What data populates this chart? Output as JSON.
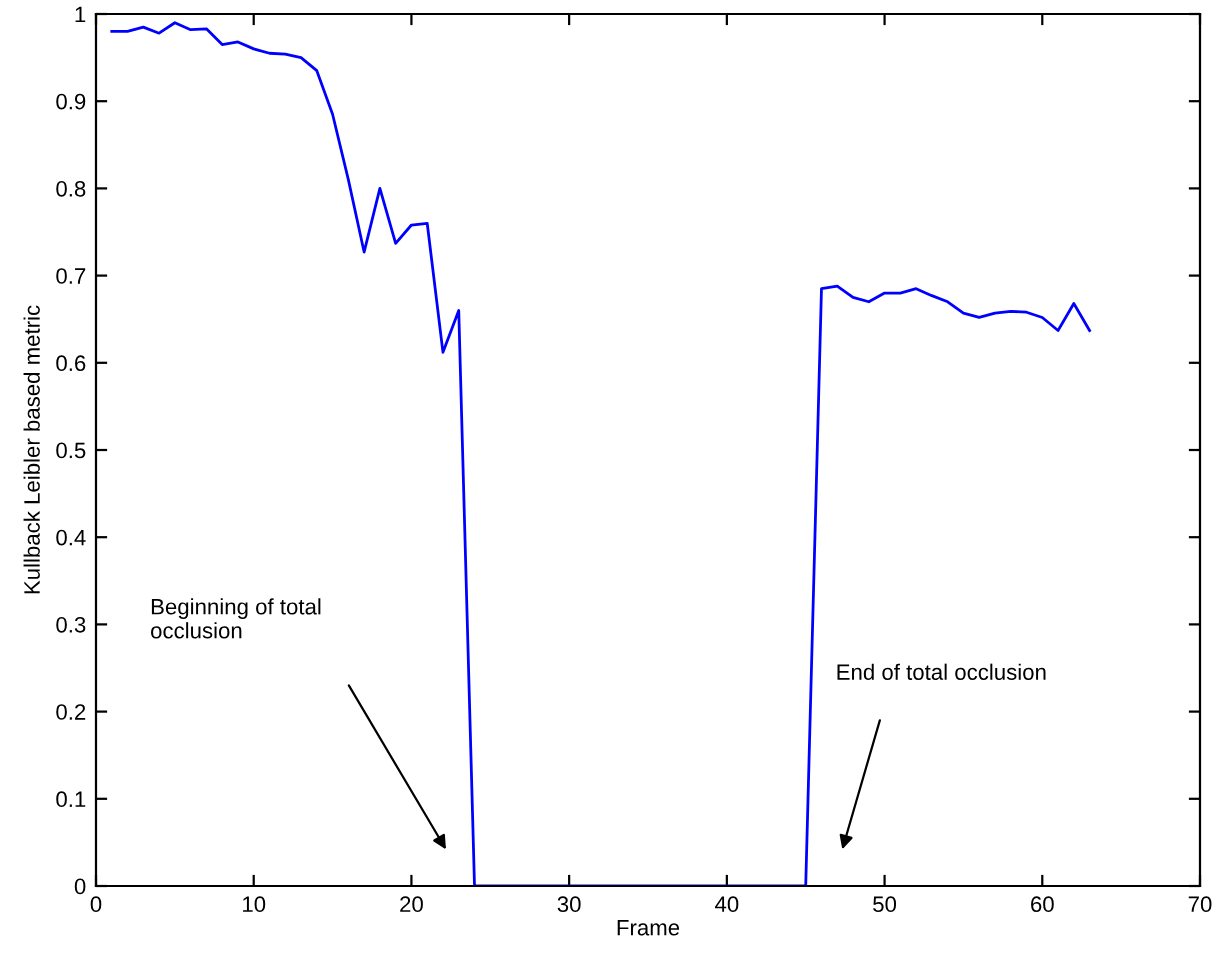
{
  "chart_data": {
    "type": "line",
    "xlabel": "Frame",
    "ylabel": "Kullback Leibler based metric",
    "x": [
      1,
      2,
      3,
      4,
      5,
      6,
      7,
      8,
      9,
      10,
      11,
      12,
      13,
      14,
      15,
      16,
      17,
      18,
      19,
      20,
      21,
      22,
      23,
      24,
      25,
      26,
      27,
      28,
      29,
      30,
      31,
      32,
      33,
      34,
      35,
      36,
      37,
      38,
      39,
      40,
      41,
      42,
      43,
      44,
      45,
      46,
      47,
      48,
      49,
      50,
      51,
      52,
      53,
      54,
      55,
      56,
      57,
      58,
      59,
      60,
      61,
      62,
      63
    ],
    "series": [
      {
        "color": "#0000ff",
        "values": [
          0.98,
          0.98,
          0.985,
          0.978,
          0.99,
          0.982,
          0.983,
          0.965,
          0.968,
          0.96,
          0.955,
          0.954,
          0.95,
          0.935,
          0.885,
          0.81,
          0.727,
          0.8,
          0.737,
          0.758,
          0.76,
          0.612,
          0.66,
          0,
          0,
          0,
          0,
          0,
          0,
          0,
          0,
          0,
          0,
          0,
          0,
          0,
          0,
          0,
          0,
          0,
          0,
          0,
          0,
          0,
          0,
          0.685,
          0.688,
          0.675,
          0.67,
          0.68,
          0.68,
          0.685,
          0.677,
          0.67,
          0.657,
          0.652,
          0.657,
          0.659,
          0.658,
          0.652,
          0.637,
          0.668,
          0.637
        ]
      }
    ],
    "xlim": [
      0,
      70
    ],
    "xticks": [
      0,
      10,
      20,
      30,
      40,
      50,
      60,
      70
    ],
    "ylim": [
      0,
      1
    ],
    "yticks": [
      0,
      0.1,
      0.2,
      0.3,
      0.4,
      0.5,
      0.6,
      0.7,
      0.8,
      0.9,
      1
    ],
    "grid": false,
    "legend": false,
    "annotations": [
      "Beginning of total\nocclusion",
      "End of total occlusion"
    ]
  }
}
